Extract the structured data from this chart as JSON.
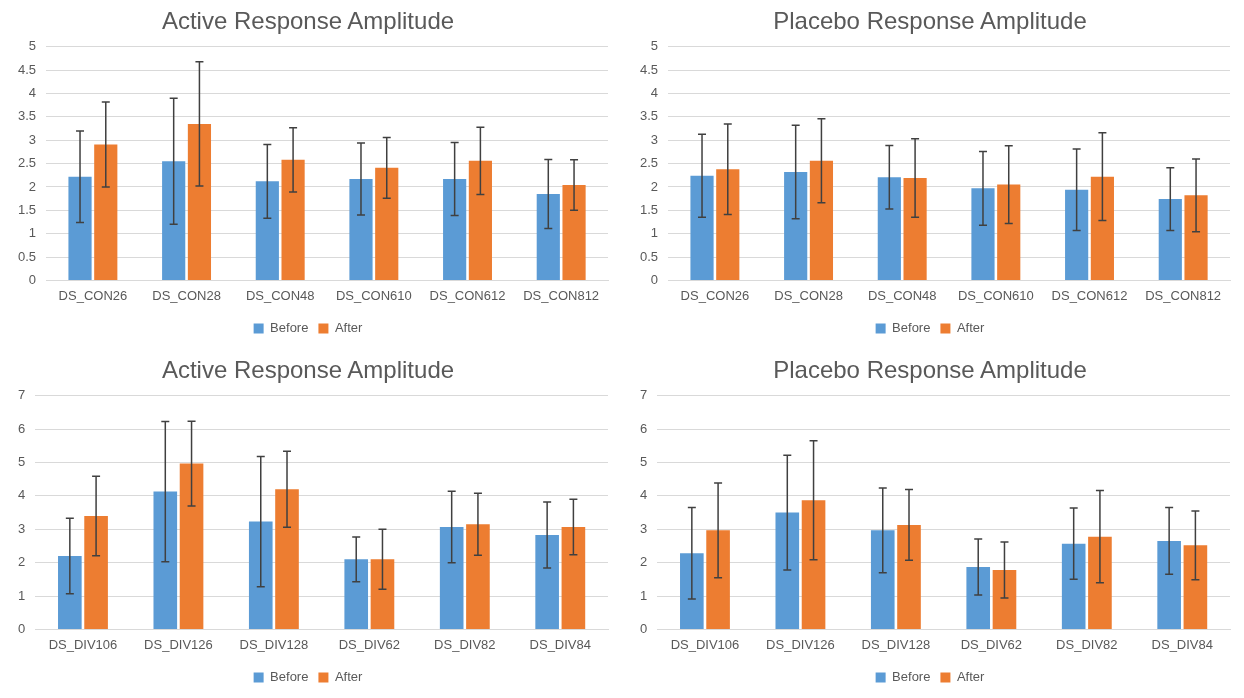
{
  "chart_data": [
    {
      "type": "bar",
      "title": "Active Response Amplitude",
      "categories": [
        "DS_CON26",
        "DS_CON28",
        "DS_CON48",
        "DS_CON610",
        "DS_CON612",
        "DS_CON812"
      ],
      "series": [
        {
          "name": "Before",
          "color": "#5b9bd5",
          "values": [
            2.22,
            2.55,
            2.12,
            2.17,
            2.17,
            1.85
          ],
          "errors": [
            0.98,
            1.35,
            0.79,
            0.77,
            0.78,
            0.74
          ]
        },
        {
          "name": "After",
          "color": "#ed7d31",
          "values": [
            2.91,
            3.35,
            2.58,
            2.41,
            2.56,
            2.04
          ],
          "errors": [
            0.91,
            1.33,
            0.69,
            0.65,
            0.72,
            0.54
          ]
        }
      ],
      "ylim": [
        0,
        5
      ],
      "yticks": [
        0,
        0.5,
        1,
        1.5,
        2,
        2.5,
        3,
        3.5,
        4,
        4.5,
        5
      ],
      "grid": "y",
      "legend": "bottom"
    },
    {
      "type": "bar",
      "title": "Placebo Response Amplitude",
      "categories": [
        "DS_CON26",
        "DS_CON28",
        "DS_CON48",
        "DS_CON610",
        "DS_CON612",
        "DS_CON812"
      ],
      "series": [
        {
          "name": "Before",
          "color": "#5b9bd5",
          "values": [
            2.24,
            2.32,
            2.21,
            1.97,
            1.94,
            1.74
          ],
          "errors": [
            0.89,
            1.0,
            0.68,
            0.79,
            0.87,
            0.67
          ]
        },
        {
          "name": "After",
          "color": "#ed7d31",
          "values": [
            2.38,
            2.56,
            2.19,
            2.05,
            2.22,
            1.82
          ],
          "errors": [
            0.97,
            0.9,
            0.84,
            0.83,
            0.94,
            0.78
          ]
        }
      ],
      "ylim": [
        0,
        5
      ],
      "yticks": [
        0,
        0.5,
        1,
        1.5,
        2,
        2.5,
        3,
        3.5,
        4,
        4.5,
        5
      ],
      "grid": "y",
      "legend": "bottom"
    },
    {
      "type": "bar",
      "title": "Active Response Amplitude",
      "categories": [
        "DS_DIV106",
        "DS_DIV126",
        "DS_DIV128",
        "DS_DIV62",
        "DS_DIV82",
        "DS_DIV84"
      ],
      "series": [
        {
          "name": "Before",
          "color": "#5b9bd5",
          "values": [
            2.2,
            4.13,
            3.23,
            2.1,
            3.07,
            2.83
          ],
          "errors": [
            1.13,
            2.1,
            1.95,
            0.67,
            1.07,
            0.99
          ]
        },
        {
          "name": "After",
          "color": "#ed7d31",
          "values": [
            3.4,
            4.97,
            4.2,
            2.1,
            3.15,
            3.07
          ],
          "errors": [
            1.19,
            1.27,
            1.14,
            0.9,
            0.93,
            0.83
          ]
        }
      ],
      "ylim": [
        0,
        7
      ],
      "yticks": [
        0,
        1,
        2,
        3,
        4,
        5,
        6,
        7
      ],
      "grid": "y",
      "legend": "bottom"
    },
    {
      "type": "bar",
      "title": "Placebo Response Amplitude",
      "categories": [
        "DS_DIV106",
        "DS_DIV126",
        "DS_DIV128",
        "DS_DIV62",
        "DS_DIV82",
        "DS_DIV84"
      ],
      "series": [
        {
          "name": "Before",
          "color": "#5b9bd5",
          "values": [
            2.28,
            3.5,
            2.97,
            1.87,
            2.57,
            2.65
          ],
          "errors": [
            1.37,
            1.72,
            1.27,
            0.84,
            1.07,
            1.0
          ]
        },
        {
          "name": "After",
          "color": "#ed7d31",
          "values": [
            2.97,
            3.87,
            3.13,
            1.78,
            2.78,
            2.52
          ],
          "errors": [
            1.42,
            1.78,
            1.06,
            0.84,
            1.38,
            1.03
          ]
        }
      ],
      "ylim": [
        0,
        7
      ],
      "yticks": [
        0,
        1,
        2,
        3,
        4,
        5,
        6,
        7
      ],
      "grid": "y",
      "legend": "bottom"
    }
  ]
}
